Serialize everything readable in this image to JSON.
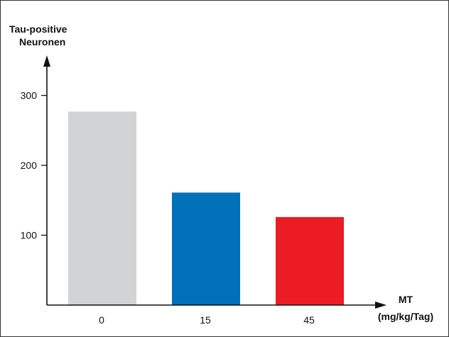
{
  "chart_data": {
    "type": "bar",
    "ylabel_lines": [
      "Tau-positive",
      "Neuronen"
    ],
    "xlabel_lines": [
      "MT",
      "(mg/kg/Tag)"
    ],
    "categories": [
      "0",
      "15",
      "45"
    ],
    "values": [
      277,
      161,
      126
    ],
    "colors": [
      "#d2d3d5",
      "#0070b8",
      "#ec1c24"
    ],
    "yticks": [
      100,
      200,
      300
    ],
    "ylim": [
      0,
      350
    ],
    "grid": false,
    "legend": "none"
  }
}
